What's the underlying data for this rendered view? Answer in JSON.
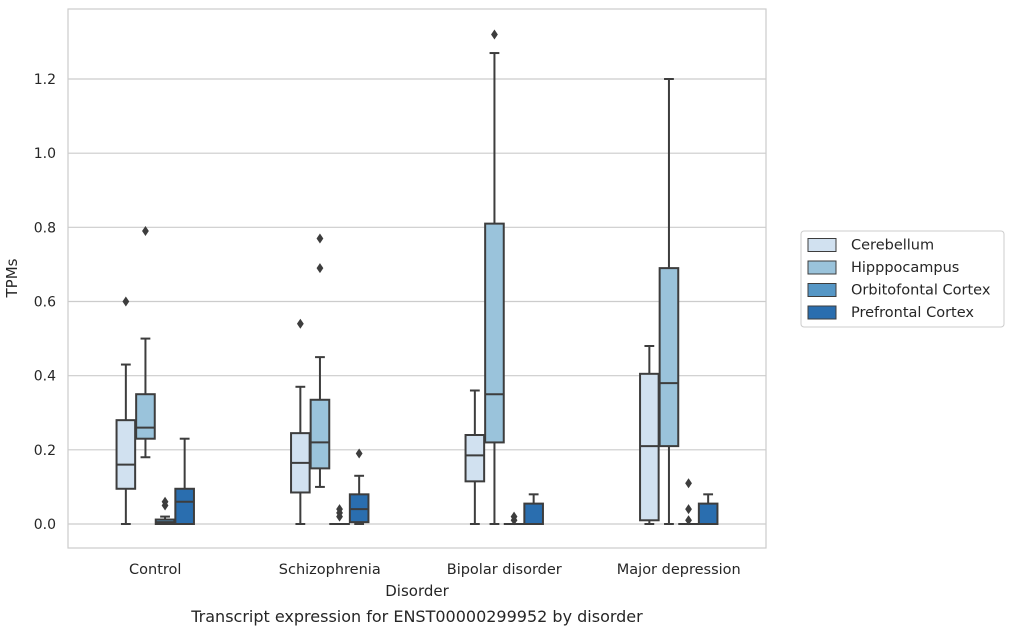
{
  "chart_data": {
    "type": "box",
    "title": "Transcript expression for ENST00000299952 by disorder",
    "xlabel": "Disorder",
    "ylabel": "TPMs",
    "ylim": [
      -0.065,
      1.38
    ],
    "yticks": [
      "0.0",
      "0.2",
      "0.4",
      "0.6",
      "0.8",
      "1.0",
      "1.2"
    ],
    "grid": true,
    "legend_position": "right",
    "categories": [
      "Control",
      "Schizophrenia",
      "Bipolar disorder",
      "Major depression"
    ],
    "series": [
      {
        "name": "Cerebellum",
        "color": "#d1e1f0",
        "boxes": [
          {
            "whisker_low": 0.0,
            "q1": 0.095,
            "median": 0.16,
            "q3": 0.28,
            "whisker_high": 0.43,
            "outliers": [
              0.6
            ]
          },
          {
            "whisker_low": 0.0,
            "q1": 0.085,
            "median": 0.165,
            "q3": 0.245,
            "whisker_high": 0.37,
            "outliers": [
              0.54
            ]
          },
          {
            "whisker_low": 0.0,
            "q1": 0.115,
            "median": 0.185,
            "q3": 0.24,
            "whisker_high": 0.36,
            "outliers": []
          },
          {
            "whisker_low": 0.0,
            "q1": 0.01,
            "median": 0.21,
            "q3": 0.405,
            "whisker_high": 0.48,
            "outliers": []
          }
        ]
      },
      {
        "name": "Hipppocampus",
        "color": "#9ac3db",
        "boxes": [
          {
            "whisker_low": 0.18,
            "q1": 0.23,
            "median": 0.26,
            "q3": 0.35,
            "whisker_high": 0.5,
            "outliers": [
              0.79
            ]
          },
          {
            "whisker_low": 0.1,
            "q1": 0.15,
            "median": 0.22,
            "q3": 0.335,
            "whisker_high": 0.45,
            "outliers": [
              0.69,
              0.77
            ]
          },
          {
            "whisker_low": 0.0,
            "q1": 0.22,
            "median": 0.35,
            "q3": 0.81,
            "whisker_high": 1.27,
            "outliers": [
              1.32
            ]
          },
          {
            "whisker_low": 0.0,
            "q1": 0.21,
            "median": 0.38,
            "q3": 0.69,
            "whisker_high": 1.2,
            "outliers": []
          }
        ]
      },
      {
        "name": "Orbitofontal Cortex",
        "color": "#5697c6",
        "boxes": [
          {
            "whisker_low": 0.0,
            "q1": 0.0,
            "median": 0.005,
            "q3": 0.012,
            "whisker_high": 0.02,
            "outliers": [
              0.05,
              0.06
            ]
          },
          {
            "whisker_low": 0.0,
            "q1": 0.0,
            "median": 0.0,
            "q3": 0.0,
            "whisker_high": 0.0,
            "outliers": [
              0.02,
              0.03,
              0.04
            ]
          },
          {
            "whisker_low": 0.0,
            "q1": 0.0,
            "median": 0.0,
            "q3": 0.0,
            "whisker_high": 0.0,
            "outliers": [
              0.01,
              0.02
            ]
          },
          {
            "whisker_low": 0.0,
            "q1": 0.0,
            "median": 0.0,
            "q3": 0.0,
            "whisker_high": 0.0,
            "outliers": [
              0.01,
              0.04,
              0.11
            ]
          }
        ]
      },
      {
        "name": "Prefrontal Cortex",
        "color": "#2a6eaf",
        "boxes": [
          {
            "whisker_low": 0.0,
            "q1": 0.0,
            "median": 0.06,
            "q3": 0.095,
            "whisker_high": 0.23,
            "outliers": []
          },
          {
            "whisker_low": 0.0,
            "q1": 0.005,
            "median": 0.04,
            "q3": 0.08,
            "whisker_high": 0.13,
            "outliers": [
              0.19
            ]
          },
          {
            "whisker_low": 0.0,
            "q1": 0.0,
            "median": 0.0,
            "q3": 0.055,
            "whisker_high": 0.08,
            "outliers": []
          },
          {
            "whisker_low": 0.0,
            "q1": 0.0,
            "median": 0.0,
            "q3": 0.055,
            "whisker_high": 0.08,
            "outliers": []
          }
        ]
      }
    ]
  },
  "colors": {
    "grid": "#cccccc",
    "frame": "#cccccc",
    "box_edge": "#3d3d3d",
    "text": "#262626"
  }
}
